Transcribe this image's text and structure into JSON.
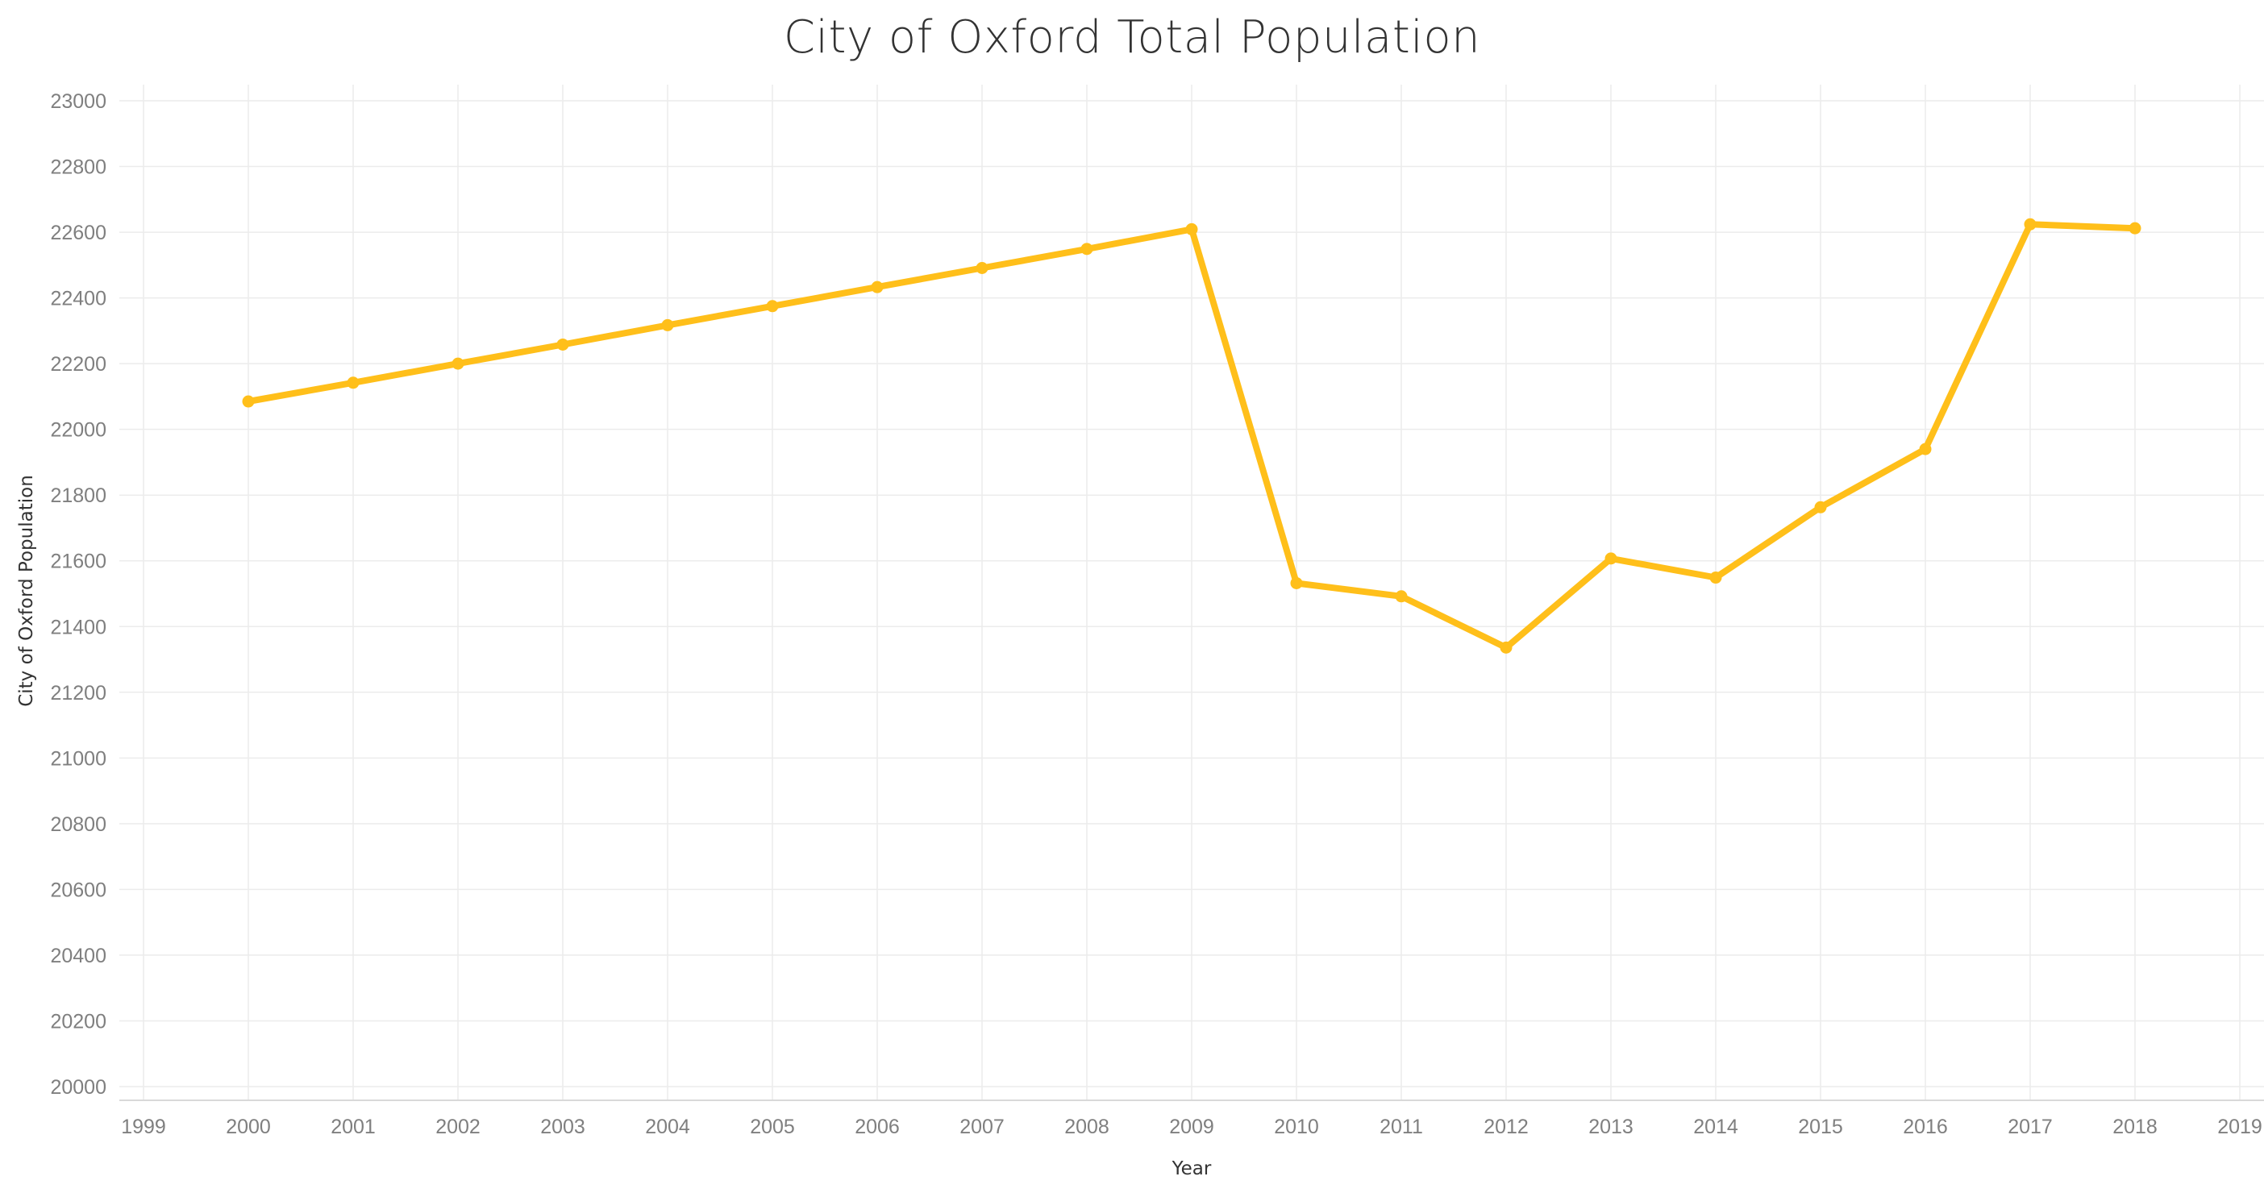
{
  "chart_data": {
    "type": "line",
    "title": "City of Oxford Total Population",
    "xlabel": "Year",
    "ylabel": "City of Oxford Population",
    "xlim": [
      1999,
      2019
    ],
    "ylim": [
      20000,
      23000
    ],
    "x_ticks": [
      1999,
      2000,
      2001,
      2002,
      2003,
      2004,
      2005,
      2006,
      2007,
      2008,
      2009,
      2010,
      2011,
      2012,
      2013,
      2014,
      2015,
      2016,
      2017,
      2018,
      2019
    ],
    "y_ticks": [
      20000,
      20200,
      20400,
      20600,
      20800,
      21000,
      21200,
      21400,
      21600,
      21800,
      22000,
      22200,
      22400,
      22600,
      22800,
      23000
    ],
    "grid": true,
    "series": [
      {
        "color": "#FFBF1A",
        "x": [
          2000,
          2001,
          2002,
          2003,
          2004,
          2005,
          2006,
          2007,
          2008,
          2009,
          2010,
          2011,
          2012,
          2013,
          2014,
          2015,
          2016,
          2017,
          2018
        ],
        "values": [
          22085,
          22142,
          22200,
          22258,
          22317,
          22375,
          22433,
          22491,
          22549,
          22609,
          21532,
          21492,
          21336,
          21607,
          21549,
          21763,
          21940,
          22624,
          22612
        ]
      }
    ]
  }
}
